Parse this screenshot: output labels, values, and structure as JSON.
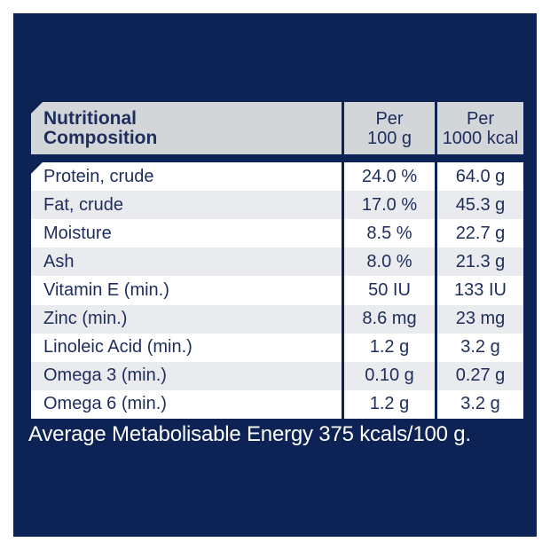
{
  "colors": {
    "panel_navy": "#0d2255",
    "header_gray": "#d3d6d9",
    "stripe_gray": "#e9ebee",
    "text_navy": "#1e2d5c",
    "footer_text": "#ffffff",
    "page_border": "#ffffff"
  },
  "table": {
    "header": {
      "title": "Nutritional\nComposition",
      "per_100g": "Per\n100 g",
      "per_1000kcal": "Per\n1000 kcal"
    },
    "rows": [
      {
        "label": "Protein, crude",
        "per_100g": "24.0 %",
        "per_1000kcal": "64.0 g"
      },
      {
        "label": "Fat, crude",
        "per_100g": "17.0 %",
        "per_1000kcal": "45.3 g"
      },
      {
        "label": "Moisture",
        "per_100g": "8.5 %",
        "per_1000kcal": "22.7 g"
      },
      {
        "label": "Ash",
        "per_100g": "8.0 %",
        "per_1000kcal": "21.3 g"
      },
      {
        "label": "Vitamin E (min.)",
        "per_100g": "50 IU",
        "per_1000kcal": "133 IU"
      },
      {
        "label": "Zinc (min.)",
        "per_100g": "8.6 mg",
        "per_1000kcal": "23 mg"
      },
      {
        "label": "Linoleic Acid (min.)",
        "per_100g": "1.2 g",
        "per_1000kcal": "3.2 g"
      },
      {
        "label": "Omega 3 (min.)",
        "per_100g": "0.10 g",
        "per_1000kcal": "0.27 g"
      },
      {
        "label": "Omega 6 (min.)",
        "per_100g": "1.2 g",
        "per_1000kcal": "3.2 g"
      }
    ]
  },
  "footer": {
    "text": "Average Metabolisable Energy 375 kcals/100 g."
  }
}
